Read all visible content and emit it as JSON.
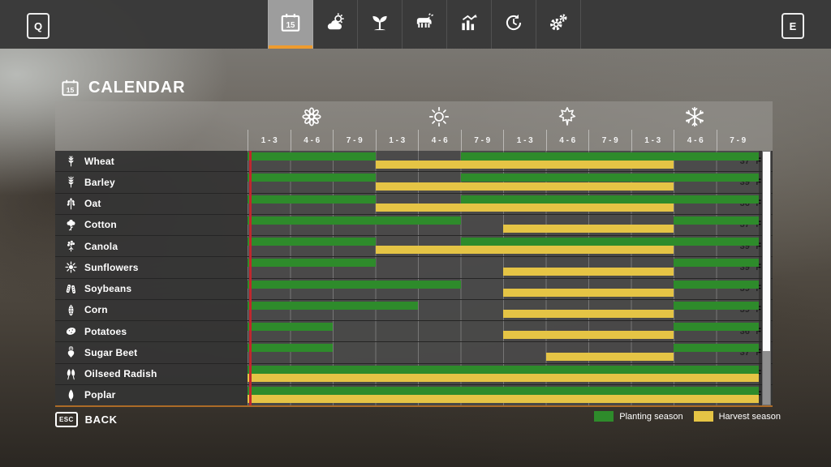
{
  "topbar": {
    "key_left": "Q",
    "key_right": "E",
    "tabs": [
      {
        "id": "calendar",
        "icon": "calendar-15-icon",
        "active": true
      },
      {
        "id": "weather",
        "icon": "weather-icon",
        "active": false
      },
      {
        "id": "crops",
        "icon": "seedling-icon",
        "active": false
      },
      {
        "id": "animals",
        "icon": "cow-icon",
        "active": false
      },
      {
        "id": "statistics",
        "icon": "bar-chart-icon",
        "active": false
      },
      {
        "id": "rotation",
        "icon": "cycle-arrows-icon",
        "active": false
      },
      {
        "id": "settings",
        "icon": "gear-icon",
        "active": false
      }
    ]
  },
  "page": {
    "title": "CALENDAR",
    "title_icon": "calendar-15-icon"
  },
  "footer": {
    "esc_label": "ESC",
    "back_label": "BACK"
  },
  "legend": {
    "planting": "Planting season",
    "harvest": "Harvest season"
  },
  "colors": {
    "planting": "#2e8b2b",
    "harvest": "#e5c445",
    "active_tab_underline": "#ee9b2f",
    "current_day_line": "#c1272d"
  },
  "chart_data": {
    "type": "gantt-calendar",
    "seasons": [
      {
        "name": "spring",
        "icon": "flower-icon"
      },
      {
        "name": "summer",
        "icon": "sun-icon"
      },
      {
        "name": "autumn",
        "icon": "maple-leaf-icon"
      },
      {
        "name": "winter",
        "icon": "snowflake-icon"
      }
    ],
    "month_ranges": [
      "1 - 3",
      "4 - 6",
      "7 - 9"
    ],
    "columns_per_season": 3,
    "current_day_column": 1,
    "crops": [
      {
        "name": "Wheat",
        "icon": "wheat-icon",
        "temperature": "37 °F",
        "planting": [
          [
            1,
            3
          ],
          [
            6,
            12
          ]
        ],
        "harvest": [
          [
            4,
            10
          ]
        ]
      },
      {
        "name": "Barley",
        "icon": "barley-icon",
        "temperature": "39 °F",
        "planting": [
          [
            1,
            3
          ],
          [
            6,
            12
          ]
        ],
        "harvest": [
          [
            4,
            10
          ]
        ]
      },
      {
        "name": "Oat",
        "icon": "oat-icon",
        "temperature": "36 °F",
        "planting": [
          [
            1,
            3
          ],
          [
            6,
            12
          ]
        ],
        "harvest": [
          [
            4,
            10
          ]
        ]
      },
      {
        "name": "Cotton",
        "icon": "cotton-icon",
        "temperature": "37 °F",
        "planting": [
          [
            1,
            5
          ],
          [
            11,
            12
          ]
        ],
        "harvest": [
          [
            7,
            10
          ]
        ]
      },
      {
        "name": "Canola",
        "icon": "canola-icon",
        "temperature": "39 °F",
        "planting": [
          [
            1,
            3
          ],
          [
            6,
            12
          ]
        ],
        "harvest": [
          [
            4,
            10
          ]
        ]
      },
      {
        "name": "Sunflowers",
        "icon": "sunflower-icon",
        "temperature": "39 °F",
        "planting": [
          [
            1,
            3
          ],
          [
            11,
            12
          ]
        ],
        "harvest": [
          [
            7,
            10
          ]
        ]
      },
      {
        "name": "Soybeans",
        "icon": "soybean-icon",
        "temperature": "39 °F",
        "planting": [
          [
            1,
            5
          ],
          [
            11,
            12
          ]
        ],
        "harvest": [
          [
            7,
            10
          ]
        ]
      },
      {
        "name": "Corn",
        "icon": "corn-icon",
        "temperature": "39 °F",
        "planting": [
          [
            1,
            4
          ],
          [
            11,
            12
          ]
        ],
        "harvest": [
          [
            7,
            10
          ]
        ]
      },
      {
        "name": "Potatoes",
        "icon": "potato-icon",
        "temperature": "36 °F",
        "planting": [
          [
            1,
            2
          ],
          [
            11,
            12
          ]
        ],
        "harvest": [
          [
            7,
            10
          ]
        ]
      },
      {
        "name": "Sugar Beet",
        "icon": "sugar-beet-icon",
        "temperature": "37 °F",
        "planting": [
          [
            1,
            2
          ],
          [
            11,
            12
          ]
        ],
        "harvest": [
          [
            8,
            10
          ]
        ]
      },
      {
        "name": "Oilseed Radish",
        "icon": "oilseed-radish-icon",
        "temperature": "37 °F",
        "planting": [
          [
            1,
            12
          ]
        ],
        "harvest": [
          [
            1,
            12
          ]
        ]
      },
      {
        "name": "Poplar",
        "icon": "poplar-icon",
        "temperature": "46 °F",
        "planting": [
          [
            1,
            12
          ]
        ],
        "harvest": [
          [
            1,
            12
          ]
        ]
      }
    ]
  }
}
